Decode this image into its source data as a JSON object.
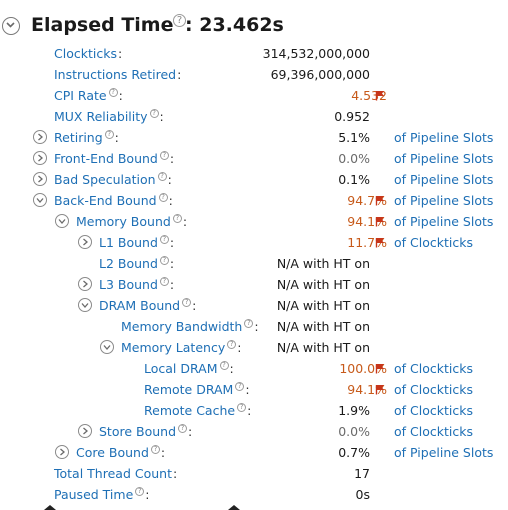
{
  "header": {
    "title": "Elapsed Time",
    "separator": ":",
    "value": "23.462s",
    "help": "?"
  },
  "colors": {
    "link": "#1e6fb5",
    "warning": "#c75a1a",
    "text": "#1a1a1a"
  },
  "rows": [
    {
      "label": "Clockticks",
      "value": "314,532,000,000",
      "unit": ""
    },
    {
      "label": "Instructions Retired",
      "value": "69,396,000,000",
      "unit": ""
    },
    {
      "label": "CPI Rate",
      "value": "4.532",
      "unit": ""
    },
    {
      "label": "MUX Reliability",
      "value": "0.952",
      "unit": ""
    },
    {
      "label": "Retiring",
      "value": "5.1%",
      "unit": "of Pipeline Slots"
    },
    {
      "label": "Front-End Bound",
      "value": "0.0%",
      "unit": "of Pipeline Slots"
    },
    {
      "label": "Bad Speculation",
      "value": "0.1%",
      "unit": "of Pipeline Slots"
    },
    {
      "label": "Back-End Bound",
      "value": "94.7%",
      "unit": "of Pipeline Slots"
    },
    {
      "label": "Memory Bound",
      "value": "94.1%",
      "unit": "of Pipeline Slots"
    },
    {
      "label": "L1 Bound",
      "value": "11.7%",
      "unit": "of Clockticks"
    },
    {
      "label": "L2 Bound",
      "value": "N/A with HT on",
      "unit": ""
    },
    {
      "label": "L3 Bound",
      "value": "N/A with HT on",
      "unit": ""
    },
    {
      "label": "DRAM Bound",
      "value": "N/A with HT on",
      "unit": ""
    },
    {
      "label": "Memory Bandwidth",
      "value": "N/A with HT on",
      "unit": ""
    },
    {
      "label": "Memory Latency",
      "value": "N/A with HT on",
      "unit": ""
    },
    {
      "label": "Local DRAM",
      "value": "100.0%",
      "unit": "of Clockticks"
    },
    {
      "label": "Remote DRAM",
      "value": "94.1%",
      "unit": "of Clockticks"
    },
    {
      "label": "Remote Cache",
      "value": "1.9%",
      "unit": "of Clockticks"
    },
    {
      "label": "Store Bound",
      "value": "0.0%",
      "unit": "of Clockticks"
    },
    {
      "label": "Core Bound",
      "value": "0.7%",
      "unit": "of Pipeline Slots"
    },
    {
      "label": "Total Thread Count",
      "value": "17",
      "unit": ""
    },
    {
      "label": "Paused Time",
      "value": "0s",
      "unit": ""
    }
  ]
}
